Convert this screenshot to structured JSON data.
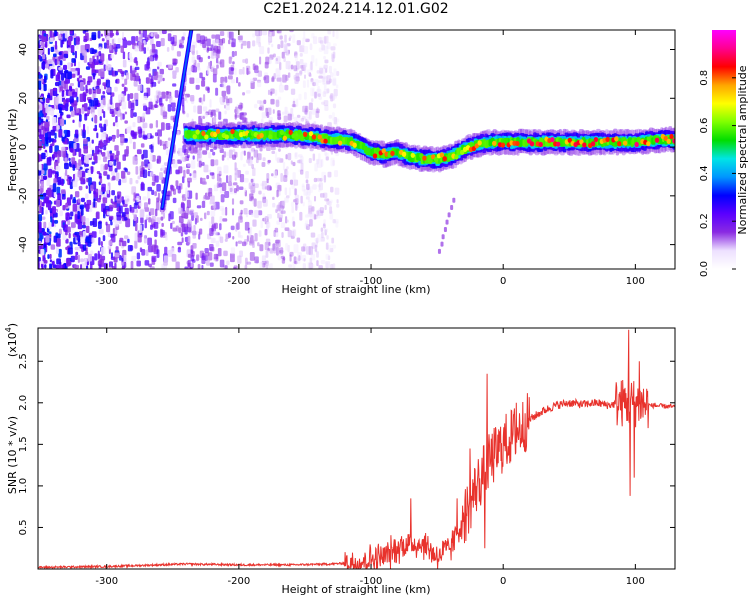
{
  "title": "C2E1.2024.214.12.01.G02",
  "chart_data": [
    {
      "type": "heatmap",
      "name": "spectrogram",
      "xlabel": "Height of straight line (km)",
      "ylabel": "Frequency (Hz)",
      "xlim": [
        -352,
        130
      ],
      "ylim": [
        -50,
        48
      ],
      "xticks": [
        -300,
        -200,
        -100,
        0,
        100
      ],
      "yticks": [
        -40,
        -20,
        0,
        20,
        40
      ],
      "colorbar": {
        "label": "Normalized spectral amplitude",
        "range": [
          0,
          1
        ],
        "ticks": [
          "0.0",
          "0.2",
          "0.4",
          "0.6",
          "0.8"
        ],
        "colormap": [
          "#ffffff",
          "#ede0ff",
          "#8a2be2",
          "#5a00ff",
          "#0000ff",
          "#0096ff",
          "#00e5e5",
          "#00dd00",
          "#7fff00",
          "#ffff00",
          "#ffa500",
          "#ff0000",
          "#ff0090",
          "#ff00ff"
        ]
      },
      "main_trace": [
        [
          -240,
          5
        ],
        [
          -220,
          5
        ],
        [
          -200,
          5
        ],
        [
          -180,
          5
        ],
        [
          -160,
          5
        ],
        [
          -140,
          4
        ],
        [
          -130,
          3
        ],
        [
          -120,
          3
        ],
        [
          -110,
          1
        ],
        [
          -100,
          -2
        ],
        [
          -90,
          -3
        ],
        [
          -80,
          -2
        ],
        [
          -70,
          -4
        ],
        [
          -60,
          -5
        ],
        [
          -50,
          -5
        ],
        [
          -40,
          -4
        ],
        [
          -30,
          -1
        ],
        [
          -20,
          1
        ],
        [
          -10,
          2
        ],
        [
          0,
          2
        ],
        [
          20,
          2
        ],
        [
          40,
          2
        ],
        [
          60,
          2
        ],
        [
          80,
          2
        ],
        [
          100,
          2
        ],
        [
          115,
          3
        ],
        [
          130,
          3
        ]
      ],
      "oblique_streak": [
        [
          -258,
          -25
        ],
        [
          -236,
          48
        ]
      ],
      "noise_region_x": [
        -352,
        -125
      ]
    },
    {
      "type": "line",
      "name": "snr",
      "xlabel": "Height of straight line (km)",
      "ylabel": "SNR (10 * v/v)",
      "yscale_label": "(x10",
      "yscale_exp": "4",
      "xlim": [
        -352,
        130
      ],
      "ylim": [
        0,
        2.9
      ],
      "xticks": [
        -300,
        -200,
        -100,
        0,
        100
      ],
      "yticks": [
        0.5,
        1.0,
        1.5,
        2.0,
        2.5
      ],
      "ytick_labels": [
        "0.5",
        "1.0",
        "1.5",
        "2.0",
        "2.5"
      ],
      "color": "#e8322c",
      "series_envelope": [
        [
          -352,
          0.02
        ],
        [
          -300,
          0.03
        ],
        [
          -260,
          0.05
        ],
        [
          -240,
          0.06
        ],
        [
          -200,
          0.05
        ],
        [
          -160,
          0.05
        ],
        [
          -130,
          0.06
        ],
        [
          -110,
          0.08
        ],
        [
          -90,
          0.15
        ],
        [
          -75,
          0.3
        ],
        [
          -60,
          0.3
        ],
        [
          -50,
          0.15
        ],
        [
          -40,
          0.25
        ],
        [
          -30,
          0.6
        ],
        [
          -20,
          1.0
        ],
        [
          -10,
          1.3
        ],
        [
          0,
          1.5
        ],
        [
          10,
          1.65
        ],
        [
          20,
          1.8
        ],
        [
          30,
          1.9
        ],
        [
          40,
          1.97
        ],
        [
          50,
          2.0
        ],
        [
          60,
          1.98
        ],
        [
          70,
          2.0
        ],
        [
          80,
          1.97
        ],
        [
          88,
          2.0
        ],
        [
          92,
          2.0
        ],
        [
          100,
          2.0
        ],
        [
          110,
          1.97
        ],
        [
          130,
          1.95
        ]
      ],
      "spikes": [
        [
          -70,
          0.85
        ],
        [
          -35,
          0.85
        ],
        [
          -25,
          1.45
        ],
        [
          -14,
          0.25
        ],
        [
          -12,
          2.35
        ],
        [
          -5,
          1.3
        ],
        [
          10,
          2.0
        ],
        [
          95,
          2.88
        ],
        [
          96,
          0.88
        ],
        [
          99,
          1.1
        ],
        [
          103,
          2.5
        ],
        [
          115,
          2.0
        ]
      ]
    }
  ]
}
